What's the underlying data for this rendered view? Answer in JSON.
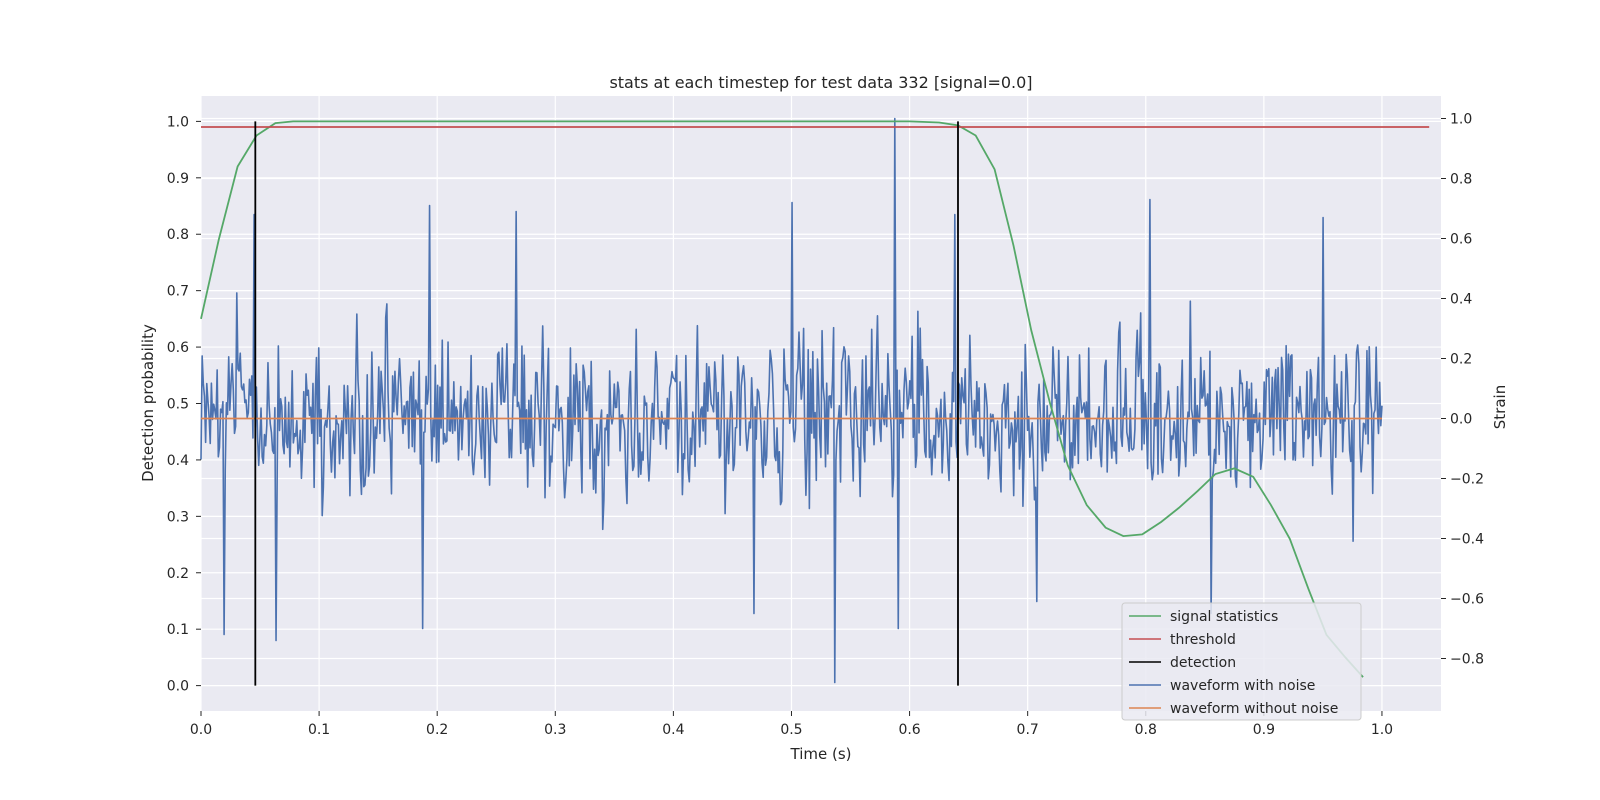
{
  "chart_data": {
    "type": "line",
    "title": "stats at each timestep for test data 332 [signal=0.0]",
    "xlabel": "Time (s)",
    "ylabel_left": "Detection probability",
    "ylabel_right": "Strain",
    "xlim": [
      0.0,
      1.05
    ],
    "ylim_left": [
      -0.045,
      1.045
    ],
    "ylim_right": [
      -0.975,
      1.075
    ],
    "x_ticks": [
      "0.0",
      "0.1",
      "0.2",
      "0.3",
      "0.4",
      "0.5",
      "0.6",
      "0.7",
      "0.8",
      "0.9",
      "1.0"
    ],
    "y_left_ticks": [
      "0.0",
      "0.1",
      "0.2",
      "0.3",
      "0.4",
      "0.5",
      "0.6",
      "0.7",
      "0.8",
      "0.9",
      "1.0"
    ],
    "y_right_ticks": [
      "−0.8",
      "−0.6",
      "−0.4",
      "−0.2",
      "0.0",
      "0.2",
      "0.4",
      "0.6",
      "0.8",
      "1.0"
    ],
    "grid": true,
    "legend_position": "lower-right",
    "colors": {
      "background": "#eaeaf2",
      "grid": "#ffffff",
      "signal": "#55a868",
      "threshold": "#c44e52",
      "detection": "#000000",
      "noisy": "#4c72b0",
      "clean": "#dd8452"
    },
    "legend": [
      {
        "key": "signal",
        "label": "signal statistics"
      },
      {
        "key": "threshold",
        "label": "threshold"
      },
      {
        "key": "detection",
        "label": "detection"
      },
      {
        "key": "noisy",
        "label": "waveform with noise"
      },
      {
        "key": "clean",
        "label": "waveform without noise"
      }
    ],
    "series": [
      {
        "name": "signal statistics",
        "axis": "left",
        "x": [
          0.0,
          0.015,
          0.031,
          0.047,
          0.063,
          0.078,
          0.1,
          0.2,
          0.3,
          0.4,
          0.5,
          0.6,
          0.625,
          0.641,
          0.656,
          0.672,
          0.688,
          0.703,
          0.719,
          0.734,
          0.75,
          0.766,
          0.781,
          0.797,
          0.813,
          0.828,
          0.844,
          0.859,
          0.875,
          0.891,
          0.906,
          0.922,
          0.938,
          0.953,
          0.969,
          0.984
        ],
        "values": [
          0.65,
          0.79,
          0.92,
          0.975,
          0.997,
          1.0,
          1.0,
          1.0,
          1.0,
          1.0,
          1.0,
          1.0,
          0.998,
          0.993,
          0.975,
          0.915,
          0.78,
          0.63,
          0.5,
          0.39,
          0.32,
          0.28,
          0.265,
          0.268,
          0.29,
          0.315,
          0.345,
          0.375,
          0.385,
          0.37,
          0.32,
          0.26,
          0.17,
          0.09,
          0.05,
          0.015
        ]
      },
      {
        "name": "threshold",
        "axis": "left",
        "x": [
          0.0,
          1.04
        ],
        "values": [
          0.99,
          0.99
        ]
      },
      {
        "name": "waveform without noise",
        "axis": "right",
        "x": [
          0.0,
          1.0
        ],
        "values": [
          0.0,
          0.0
        ]
      }
    ],
    "detections": [
      0.046,
      0.641
    ],
    "detection_range": [
      0.0,
      1.0
    ],
    "noise": {
      "name": "waveform with noise",
      "axis": "right",
      "x_range": [
        0.0,
        1.0
      ],
      "samples": 1024,
      "std": 0.155,
      "seed": 332,
      "spikes": [
        {
          "x": 0.02,
          "value": -0.72
        },
        {
          "x": 0.045,
          "value": 0.68
        },
        {
          "x": 0.064,
          "value": -0.74
        },
        {
          "x": 0.188,
          "value": -0.7
        },
        {
          "x": 0.194,
          "value": 0.71
        },
        {
          "x": 0.267,
          "value": 0.69
        },
        {
          "x": 0.468,
          "value": -0.65
        },
        {
          "x": 0.5,
          "value": 0.72
        },
        {
          "x": 0.537,
          "value": -0.88
        },
        {
          "x": 0.587,
          "value": 1.0
        },
        {
          "x": 0.59,
          "value": -0.7
        },
        {
          "x": 0.638,
          "value": 0.68
        },
        {
          "x": 0.708,
          "value": -0.61
        },
        {
          "x": 0.804,
          "value": 0.73
        },
        {
          "x": 0.855,
          "value": -0.65
        },
        {
          "x": 0.95,
          "value": 0.67
        }
      ]
    }
  }
}
